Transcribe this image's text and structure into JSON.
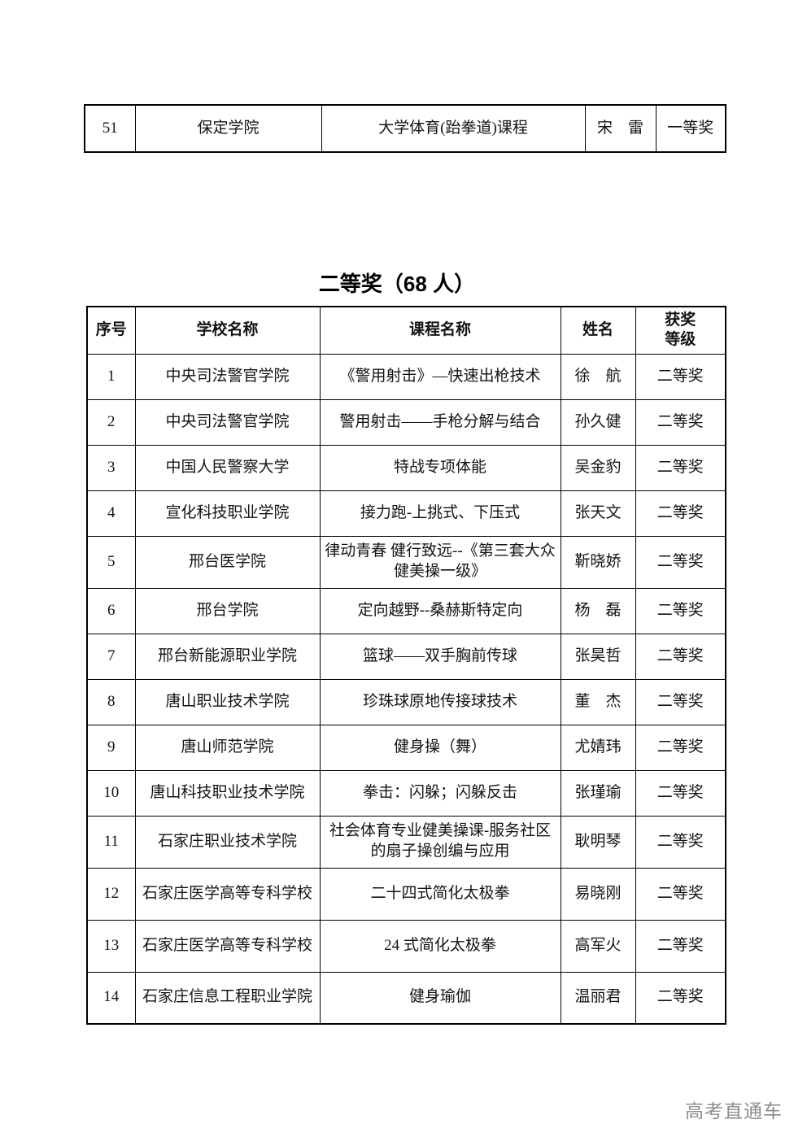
{
  "section_title": "二等奖（68 人）",
  "watermark": "高考直通车",
  "prev_table": {
    "row": {
      "no": "51",
      "school": "保定学院",
      "course": "大学体育(跆拳道)课程",
      "name": "宋　雷",
      "award": "一等奖"
    }
  },
  "awards_table": {
    "headers": [
      "序号",
      "学校名称",
      "课程名称",
      "姓名",
      "获奖\n等级"
    ],
    "rows": [
      {
        "no": "1",
        "school": "中央司法警官学院",
        "course": "《警用射击》—快速出枪技术",
        "name": "徐　航",
        "award": "二等奖"
      },
      {
        "no": "2",
        "school": "中央司法警官学院",
        "course": "警用射击——手枪分解与结合",
        "name": "孙久健",
        "award": "二等奖"
      },
      {
        "no": "3",
        "school": "中国人民警察大学",
        "course": "特战专项体能",
        "name": "吴金豹",
        "award": "二等奖"
      },
      {
        "no": "4",
        "school": "宣化科技职业学院",
        "course": "接力跑-上挑式、下压式",
        "name": "张天文",
        "award": "二等奖"
      },
      {
        "no": "5",
        "school": "邢台医学院",
        "course": "律动青春 健行致远--《第三套大众健美操一级》",
        "name": "靳晓娇",
        "award": "二等奖"
      },
      {
        "no": "6",
        "school": "邢台学院",
        "course": "定向越野--桑赫斯特定向",
        "name": "杨　磊",
        "award": "二等奖"
      },
      {
        "no": "7",
        "school": "邢台新能源职业学院",
        "course": "篮球——双手胸前传球",
        "name": "张昊哲",
        "award": "二等奖"
      },
      {
        "no": "8",
        "school": "唐山职业技术学院",
        "course": "珍珠球原地传接球技术",
        "name": "董　杰",
        "award": "二等奖"
      },
      {
        "no": "9",
        "school": "唐山师范学院",
        "course": "健身操（舞）",
        "name": "尤婧玮",
        "award": "二等奖"
      },
      {
        "no": "10",
        "school": "唐山科技职业技术学院",
        "course": "拳击：闪躲；闪躲反击",
        "name": "张瑾瑜",
        "award": "二等奖"
      },
      {
        "no": "11",
        "school": "石家庄职业技术学院",
        "course": "社会体育专业健美操课-服务社区的扇子操创编与应用",
        "name": "耿明琴",
        "award": "二等奖"
      },
      {
        "no": "12",
        "school": "石家庄医学高等专科学校",
        "course": "二十四式简化太极拳",
        "name": "易晓刚",
        "award": "二等奖"
      },
      {
        "no": "13",
        "school": "石家庄医学高等专科学校",
        "course": "24 式简化太极拳",
        "name": "高军火",
        "award": "二等奖"
      },
      {
        "no": "14",
        "school": "石家庄信息工程职业学院",
        "course": "健身瑜伽",
        "name": "温丽君",
        "award": "二等奖"
      }
    ]
  }
}
